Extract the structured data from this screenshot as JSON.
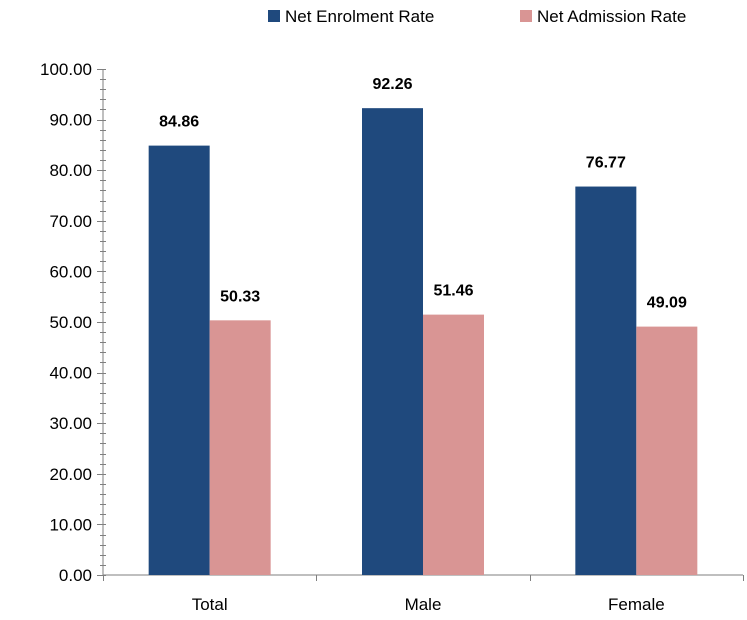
{
  "chart_data": {
    "type": "bar",
    "categories": [
      "Total",
      "Male",
      "Female"
    ],
    "series": [
      {
        "name": "Net Enrolment Rate",
        "color": "#1f497d",
        "values": [
          84.86,
          92.26,
          76.77
        ],
        "labels": [
          "84.86",
          "92.26",
          "76.77"
        ]
      },
      {
        "name": "Net Admission Rate",
        "color": "#d99594",
        "values": [
          50.33,
          51.46,
          49.09
        ],
        "labels": [
          "50.33",
          "51.46",
          "49.09"
        ]
      }
    ],
    "ylim": [
      0,
      100
    ],
    "yticks": [
      "0.00",
      "10.00",
      "20.00",
      "30.00",
      "40.00",
      "50.00",
      "60.00",
      "70.00",
      "80.00",
      "90.00",
      "100.00"
    ],
    "grid": false,
    "legend": "top-right"
  }
}
